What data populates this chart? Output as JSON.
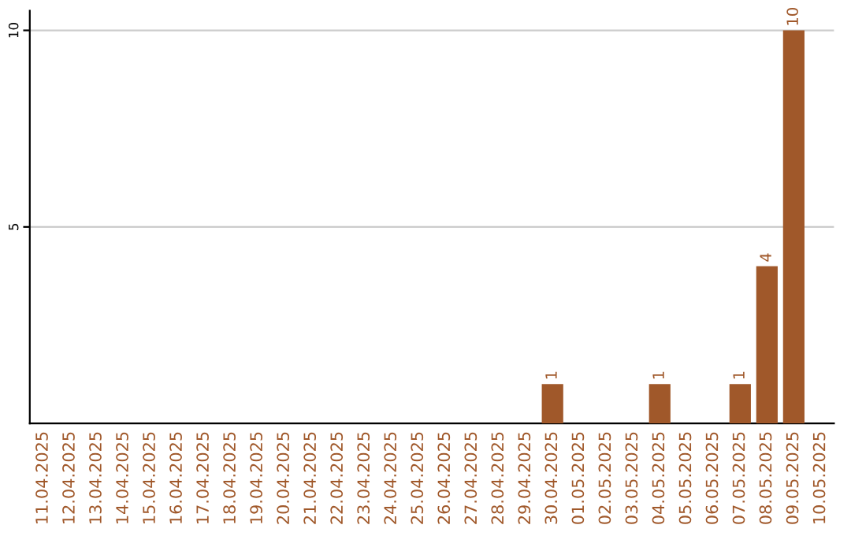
{
  "chart_data": {
    "type": "bar",
    "categories": [
      "11.04.2025",
      "12.04.2025",
      "13.04.2025",
      "14.04.2025",
      "15.04.2025",
      "16.04.2025",
      "17.04.2025",
      "18.04.2025",
      "19.04.2025",
      "20.04.2025",
      "21.04.2025",
      "22.04.2025",
      "23.04.2025",
      "24.04.2025",
      "25.04.2025",
      "26.04.2025",
      "27.04.2025",
      "28.04.2025",
      "29.04.2025",
      "30.04.2025",
      "01.05.2025",
      "02.05.2025",
      "03.05.2025",
      "04.05.2025",
      "05.05.2025",
      "06.05.2025",
      "07.05.2025",
      "08.05.2025",
      "09.05.2025",
      "10.05.2025"
    ],
    "values": [
      0,
      0,
      0,
      0,
      0,
      0,
      0,
      0,
      0,
      0,
      0,
      0,
      0,
      0,
      0,
      0,
      0,
      0,
      0,
      1,
      0,
      0,
      0,
      1,
      0,
      0,
      1,
      4,
      10,
      0
    ],
    "value_labels": [
      null,
      null,
      null,
      null,
      null,
      null,
      null,
      null,
      null,
      null,
      null,
      null,
      null,
      null,
      null,
      null,
      null,
      null,
      null,
      "1",
      null,
      null,
      null,
      "1",
      null,
      null,
      "1",
      "4",
      "10",
      null
    ],
    "color": "#a0582a",
    "ylim": [
      0,
      10.5
    ],
    "yticks": [
      5,
      10
    ],
    "grid": "y",
    "legend": false
  }
}
